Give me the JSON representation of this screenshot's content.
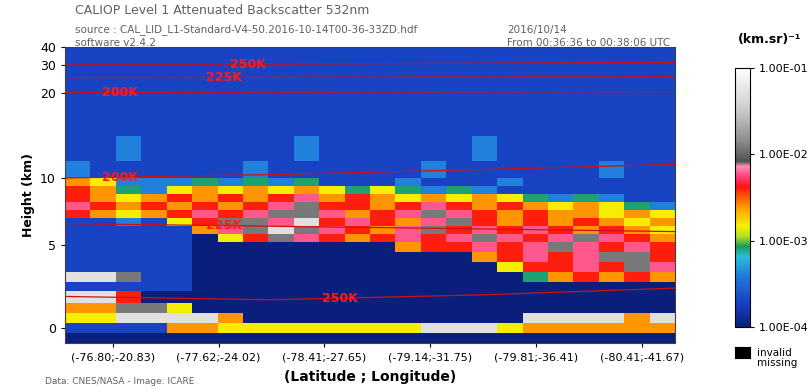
{
  "chart_data": {
    "type": "heatmap",
    "title": "CALIOP Level 1 Attenuated Backscatter 532nm",
    "subtitle": [
      "source : CAL_LID_L1-Standard-V4-50.2016-10-14T00-36-33ZD.hdf",
      "software v2.4.2"
    ],
    "annotations": [
      "2016/10/14",
      "From 00:36:36 to 00:38:06 UTC",
      "invalid\nmissing",
      "Data: CNES/NASA - Image: ICARE"
    ],
    "x_label": "(Latitude ; Longitude)",
    "y_label": "Height (km)",
    "xlim": [
      -0.45,
      5.31
    ],
    "xticks": [
      {
        "value": 0,
        "label": "(-76.80;-20.83)"
      },
      {
        "value": 1,
        "label": "(-77.62;-24.02)"
      },
      {
        "value": 2,
        "label": "(-78.41;-27.65)"
      },
      {
        "value": 3,
        "label": "(-79.14;-31.75)"
      },
      {
        "value": 4,
        "label": "(-79.81;-36.41)"
      },
      {
        "value": 5,
        "label": "(-80.41;-41.67)"
      }
    ],
    "ylim": [
      -0.9,
      40
    ],
    "yticks": [
      0,
      5,
      10,
      20,
      30,
      40
    ],
    "x_edges": [
      -0.45,
      -0.21,
      0.03,
      0.27,
      0.51,
      0.75,
      0.99,
      1.23,
      1.47,
      1.71,
      1.95,
      2.19,
      2.43,
      2.67,
      2.91,
      3.15,
      3.39,
      3.63,
      3.87,
      4.11,
      4.35,
      4.59,
      4.83,
      5.07,
      5.31
    ],
    "y_edges": [
      -0.9,
      -0.3,
      0.3,
      0.9,
      1.5,
      2.2,
      2.8,
      3.4,
      4.0,
      4.6,
      5.2,
      5.8,
      6.4,
      7.0,
      7.6,
      8.2,
      8.8,
      9.4,
      10.0,
      12,
      15,
      20,
      30,
      40
    ],
    "cells": [
      [
        0.0001,
        0.0001,
        0.0001,
        0.0001,
        0.0001,
        0.0001,
        0.0001,
        0.0001,
        0.0001,
        0.0001,
        0.0001,
        0.0001,
        0.0001,
        0.0001,
        0.0001,
        0.0001,
        0.0001,
        0.0001,
        0.0001,
        0.0001,
        0.0001,
        0.0001,
        0.0001,
        0.0001
      ],
      [
        0.0002,
        0.0002,
        0.0002,
        0.0002,
        0.0025,
        0.0025,
        0.0015,
        0.0015,
        0.0015,
        0.0015,
        0.0015,
        0.0015,
        0.0015,
        0.0015,
        0.05,
        0.05,
        0.05,
        0.0015,
        0.0025,
        0.0025,
        0.0025,
        0.0025,
        0.0025,
        0.0025
      ],
      [
        0.0015,
        0.0015,
        0.05,
        0.05,
        0.05,
        0.05,
        0.0025,
        0.0001,
        0.0001,
        0.0001,
        0.0001,
        0.0001,
        0.0001,
        0.0001,
        0.0001,
        0.0001,
        0.0001,
        0.0001,
        0.05,
        0.05,
        0.05,
        0.05,
        0.0025,
        0.05
      ],
      [
        0.0025,
        0.0025,
        0.012,
        0.012,
        0.0015,
        0.0001,
        0.0001,
        0.0001,
        0.0001,
        0.0001,
        0.0001,
        0.0001,
        0.0001,
        0.0001,
        0.0001,
        0.0001,
        0.0001,
        0.0001,
        0.0001,
        0.0001,
        0.0001,
        0.0001,
        0.0001,
        0.0001
      ],
      [
        0.05,
        0.05,
        0.004,
        0.0001,
        0.0001,
        0.0001,
        0.0001,
        0.0001,
        0.0001,
        0.0001,
        0.0001,
        0.0001,
        0.0001,
        0.0001,
        0.0001,
        0.0001,
        0.0001,
        0.0001,
        0.0001,
        0.0001,
        0.0001,
        0.0001,
        0.0001,
        0.0001
      ],
      [
        0.0002,
        0.0002,
        0.0002,
        0.0002,
        0.0002,
        0.0001,
        0.0001,
        0.0001,
        0.0001,
        0.0001,
        0.0001,
        0.0001,
        0.0001,
        0.0001,
        0.0001,
        0.0001,
        0.0001,
        0.0001,
        0.0001,
        0.0001,
        0.0001,
        0.0001,
        0.0001,
        0.0001
      ],
      [
        0.05,
        0.05,
        0.012,
        0.0002,
        0.0002,
        0.0001,
        0.0001,
        0.0001,
        0.0001,
        0.0001,
        0.0001,
        0.0001,
        0.0001,
        0.0001,
        0.0001,
        0.0001,
        0.0001,
        0.0001,
        0.0008,
        0.0025,
        0.004,
        0.0025,
        0.004,
        0.0025
      ],
      [
        0.0002,
        0.0002,
        0.0002,
        0.0002,
        0.0002,
        0.0001,
        0.0001,
        0.0001,
        0.0001,
        0.0001,
        0.0001,
        0.0001,
        0.0001,
        0.0001,
        0.0001,
        0.0001,
        0.0001,
        0.0015,
        0.004,
        0.004,
        0.006,
        0.004,
        0.012,
        0.006
      ],
      [
        0.0002,
        0.0002,
        0.0002,
        0.0002,
        0.0002,
        0.0001,
        0.0001,
        0.0001,
        0.0001,
        0.0001,
        0.0001,
        0.0001,
        0.0001,
        0.0001,
        0.0001,
        0.0001,
        0.0025,
        0.004,
        0.006,
        0.004,
        0.006,
        0.012,
        0.012,
        0.004
      ],
      [
        0.0002,
        0.0002,
        0.0002,
        0.0002,
        0.0002,
        0.0001,
        0.0001,
        0.0001,
        0.0001,
        0.0001,
        0.0001,
        0.0001,
        0.0001,
        0.0025,
        0.004,
        0.004,
        0.006,
        0.004,
        0.006,
        0.012,
        0.006,
        0.004,
        0.006,
        0.004
      ],
      [
        0.0002,
        0.0002,
        0.0002,
        0.0002,
        0.0002,
        0.0001,
        0.0015,
        0.004,
        0.012,
        0.006,
        0.004,
        0.0025,
        0.004,
        0.006,
        0.004,
        0.006,
        0.012,
        0.006,
        0.004,
        0.006,
        0.012,
        0.006,
        0.004,
        0.0025
      ],
      [
        0.0002,
        0.0002,
        0.0002,
        0.0002,
        0.0002,
        0.0025,
        0.006,
        0.012,
        0.05,
        0.012,
        0.006,
        0.004,
        0.0025,
        0.006,
        0.012,
        0.004,
        0.006,
        0.004,
        0.006,
        0.004,
        0.0025,
        0.004,
        0.0025,
        0.0015
      ],
      [
        0.0002,
        0.0002,
        0.0004,
        0.0002,
        0.0015,
        0.004,
        0.012,
        0.012,
        0.006,
        0.05,
        0.004,
        0.006,
        0.004,
        0.0025,
        0.006,
        0.012,
        0.004,
        0.0025,
        0.004,
        0.0025,
        0.004,
        0.0025,
        0.0015,
        0.0025
      ],
      [
        0.004,
        0.0025,
        0.0015,
        0.0025,
        0.004,
        0.006,
        0.004,
        0.006,
        0.012,
        0.012,
        0.006,
        0.0025,
        0.004,
        0.006,
        0.012,
        0.006,
        0.004,
        0.0025,
        0.004,
        0.0025,
        0.0025,
        0.0015,
        0.0025,
        0.0015
      ],
      [
        0.006,
        0.004,
        0.0025,
        0.004,
        0.0025,
        0.004,
        0.0025,
        0.004,
        0.006,
        0.012,
        0.004,
        0.004,
        0.0025,
        0.004,
        0.006,
        0.004,
        0.0025,
        0.004,
        0.0025,
        0.0015,
        0.0025,
        0.0015,
        0.0008,
        0.0004
      ],
      [
        0.004,
        0.0025,
        0.0015,
        0.0025,
        0.004,
        0.0025,
        0.004,
        0.0025,
        0.004,
        0.006,
        0.0025,
        0.004,
        0.0025,
        0.0015,
        0.0025,
        0.0015,
        0.0025,
        0.0015,
        0.0008,
        0.0004,
        0.0008,
        0.0004,
        0.0002,
        0.0002
      ],
      [
        0.004,
        0.0025,
        0.0008,
        0.0004,
        0.0015,
        0.0025,
        0.0015,
        0.0025,
        0.0015,
        0.0025,
        0.0015,
        0.0008,
        0.0015,
        0.0008,
        0.0004,
        0.0008,
        0.0004,
        0.0002,
        0.0002,
        0.0002,
        0.0002,
        0.0002,
        0.0002,
        0.0002
      ],
      [
        0.0025,
        0.0015,
        0.0004,
        0.0004,
        0.0004,
        0.0008,
        0.0004,
        0.0008,
        0.0004,
        0.0008,
        0.0002,
        0.0002,
        0.0002,
        0.0004,
        0.0002,
        0.0002,
        0.0002,
        0.0004,
        0.0002,
        0.0002,
        0.0002,
        0.0002,
        0.0002,
        0.0002
      ],
      [
        0.0004,
        0.0002,
        0.0002,
        0.0002,
        0.0002,
        0.0002,
        0.0002,
        0.0004,
        0.0002,
        0.0002,
        0.0002,
        0.0002,
        0.0002,
        0.0002,
        0.0004,
        0.0002,
        0.0002,
        0.0002,
        0.0002,
        0.0002,
        0.0002,
        0.0004,
        0.0002,
        0.0002
      ],
      [
        0.0002,
        0.0002,
        0.0004,
        0.0002,
        0.0002,
        0.0002,
        0.0002,
        0.0002,
        0.0002,
        0.0004,
        0.0002,
        0.0002,
        0.0002,
        0.0002,
        0.0002,
        0.0002,
        0.0004,
        0.0002,
        0.0002,
        0.0002,
        0.0002,
        0.0002,
        0.0002,
        0.0002
      ],
      [
        0.0002,
        0.0002,
        0.0002,
        0.0002,
        0.0002,
        0.0002,
        0.0002,
        0.0002,
        0.0002,
        0.0002,
        0.0002,
        0.0002,
        0.0002,
        0.0002,
        0.0002,
        0.0002,
        0.0002,
        0.0002,
        0.0002,
        0.0002,
        0.0002,
        0.0002,
        0.0002,
        0.0002
      ],
      [
        0.0002,
        0.0002,
        0.0002,
        0.0002,
        0.0002,
        0.0002,
        0.0002,
        0.0002,
        0.0002,
        0.0002,
        0.0002,
        0.0002,
        0.0002,
        0.0002,
        0.0002,
        0.0002,
        0.0002,
        0.0002,
        0.0002,
        0.0002,
        0.0002,
        0.0002,
        0.0002,
        0.0002
      ],
      [
        0.0002,
        0.0002,
        0.0002,
        0.0002,
        0.0002,
        0.0002,
        0.0002,
        0.0002,
        0.0002,
        0.0002,
        0.0002,
        0.0002,
        0.0002,
        0.0002,
        0.0002,
        0.0002,
        0.0002,
        0.0002,
        0.0002,
        0.0002,
        0.0002,
        0.0002,
        0.0002,
        0.0002
      ]
    ],
    "colorbar": {
      "label": "(km.sr)⁻¹",
      "log": true,
      "range": [
        0.0001,
        0.1
      ],
      "ticks": [
        {
          "value": 0.0001,
          "label": "1.00E-04"
        },
        {
          "value": 0.001,
          "label": "1.00E-03"
        },
        {
          "value": 0.01,
          "label": "1.00E-02"
        },
        {
          "value": 0.1,
          "label": "1.00E-01"
        }
      ]
    },
    "series": [
      {
        "name": "250K",
        "color": "#d01010",
        "x": [
          -0.45,
          1.5,
          3.5,
          5.31
        ],
        "values": [
          30.5,
          30.5,
          31,
          31.5
        ]
      },
      {
        "name": "225K",
        "color": "#d01010",
        "x": [
          -0.45,
          5.31
        ],
        "values": [
          25.5,
          25.8
        ]
      },
      {
        "name": "200K",
        "color": "#d01010",
        "x": [
          -0.45,
          5.31
        ],
        "values": [
          20.2,
          20.5
        ]
      },
      {
        "name": "200K",
        "color": "#d01010",
        "x": [
          -0.45,
          1.5,
          3.5,
          5.31
        ],
        "values": [
          10.0,
          10.4,
          11.0,
          11.6
        ]
      },
      {
        "name": "225K",
        "color": "#d01010",
        "x": [
          -0.45,
          1.5,
          3.5,
          5.31
        ],
        "values": [
          6.6,
          6.4,
          6.2,
          6.0
        ]
      },
      {
        "name": "250K",
        "color": "#d01010",
        "x": [
          -0.45,
          1.5,
          3.5,
          5.31
        ],
        "values": [
          1.9,
          1.7,
          2.0,
          2.4
        ]
      }
    ]
  }
}
